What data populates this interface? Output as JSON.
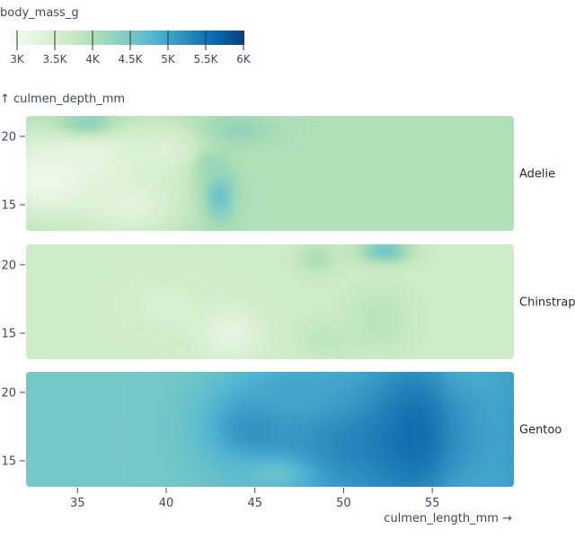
{
  "chart_data": {
    "type": "heatmap",
    "title": "",
    "color": {
      "label": "body_mass_g",
      "domain": [
        3000,
        6000
      ],
      "ticks": [
        3000,
        3500,
        4000,
        4500,
        5000,
        5500,
        6000
      ],
      "tick_labels": [
        "3K",
        "3.5K",
        "4K",
        "4.5K",
        "5K",
        "5.5K",
        "6K"
      ],
      "scheme": "GnBu",
      "stops": [
        "#f7fcf0",
        "#e0f3db",
        "#ccebc5",
        "#a8ddb5",
        "#7bccc4",
        "#4eb3d3",
        "#2b8cbe",
        "#0868ac",
        "#084081"
      ]
    },
    "x": {
      "label": "culmen_length_mm →",
      "domain": [
        32.1,
        59.6
      ],
      "ticks": [
        35,
        40,
        45,
        50,
        55
      ]
    },
    "y": {
      "label": "↑ culmen_depth_mm",
      "domain": [
        13.1,
        21.5
      ],
      "ticks": [
        15,
        20
      ]
    },
    "facets": [
      {
        "name": "Adelie",
        "base": 4050,
        "blobs": [
          {
            "x": 33.5,
            "y": 17.0,
            "rx": 3.5,
            "ry": 3.0,
            "v": 3050
          },
          {
            "x": 36.0,
            "y": 18.5,
            "rx": 3.0,
            "ry": 2.5,
            "v": 3250
          },
          {
            "x": 40.0,
            "y": 19.0,
            "rx": 2.5,
            "ry": 2.0,
            "v": 3450
          },
          {
            "x": 38.0,
            "y": 15.0,
            "rx": 3.0,
            "ry": 2.5,
            "v": 3350
          },
          {
            "x": 35.5,
            "y": 21.0,
            "rx": 1.8,
            "ry": 1.0,
            "v": 4350
          },
          {
            "x": 44.0,
            "y": 20.5,
            "rx": 2.0,
            "ry": 1.2,
            "v": 4300
          },
          {
            "x": 43.0,
            "y": 15.8,
            "rx": 0.9,
            "ry": 2.0,
            "v": 4650
          },
          {
            "x": 42.5,
            "y": 17.8,
            "rx": 1.0,
            "ry": 1.3,
            "v": 4250
          }
        ]
      },
      {
        "name": "Chinstrap",
        "base": 3700,
        "blobs": [
          {
            "x": 43.5,
            "y": 15.0,
            "rx": 1.8,
            "ry": 2.0,
            "v": 3250
          },
          {
            "x": 40.0,
            "y": 17.0,
            "rx": 2.5,
            "ry": 2.5,
            "v": 3550
          },
          {
            "x": 52.3,
            "y": 21.0,
            "rx": 1.5,
            "ry": 0.9,
            "v": 4600
          },
          {
            "x": 48.5,
            "y": 20.5,
            "rx": 1.2,
            "ry": 1.2,
            "v": 4050
          },
          {
            "x": 52.0,
            "y": 16.0,
            "rx": 2.0,
            "ry": 2.5,
            "v": 3950
          },
          {
            "x": 49.0,
            "y": 14.5,
            "rx": 1.5,
            "ry": 1.5,
            "v": 3900
          }
        ]
      },
      {
        "name": "Gentoo",
        "base": 4550,
        "blobs": [
          {
            "x": 50.0,
            "y": 16.5,
            "rx": 5.5,
            "ry": 6.0,
            "v": 5250
          },
          {
            "x": 54.0,
            "y": 17.0,
            "rx": 3.0,
            "ry": 6.0,
            "v": 5550
          },
          {
            "x": 45.0,
            "y": 17.5,
            "rx": 2.5,
            "ry": 2.5,
            "v": 5200
          },
          {
            "x": 47.5,
            "y": 20.0,
            "rx": 3.5,
            "ry": 2.0,
            "v": 5000
          },
          {
            "x": 46.0,
            "y": 14.0,
            "rx": 2.0,
            "ry": 1.2,
            "v": 4650
          }
        ]
      }
    ]
  }
}
